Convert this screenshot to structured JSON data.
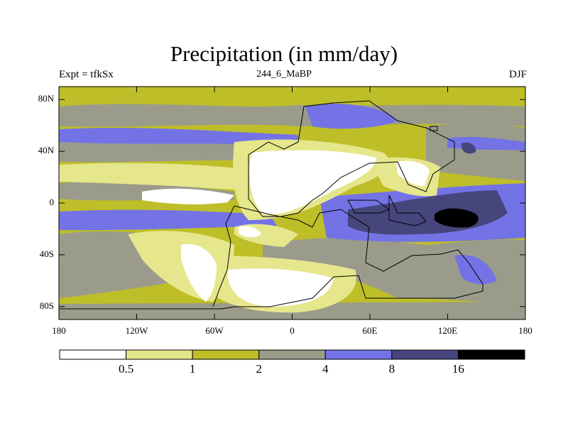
{
  "title": "Precipitation (in mm/day)",
  "left_string": "Expt = tfkSx",
  "center_string": "244_6_MaBP",
  "right_string": "DJF",
  "map": {
    "projection": "cylindrical-equidistant",
    "lon_range": [
      -180,
      180
    ],
    "lat_range": [
      -90,
      90
    ],
    "y_ticks": [
      {
        "label": "80N",
        "lat": 80
      },
      {
        "label": "40N",
        "lat": 40
      },
      {
        "label": "0",
        "lat": 0
      },
      {
        "label": "40S",
        "lat": -40
      },
      {
        "label": "80S",
        "lat": -80
      }
    ],
    "x_ticks": [
      {
        "label": "180",
        "lon": -180
      },
      {
        "label": "120W",
        "lon": -120
      },
      {
        "label": "60W",
        "lon": -60
      },
      {
        "label": "0",
        "lon": 0
      },
      {
        "label": "60E",
        "lon": 60
      },
      {
        "label": "120E",
        "lon": 120
      },
      {
        "label": "180",
        "lon": 180
      }
    ]
  },
  "colorbar": {
    "levels": [
      "0.5",
      "1",
      "2",
      "4",
      "8",
      "16"
    ],
    "colors": [
      "#ffffff",
      "#e6e68c",
      "#bebe28",
      "#9b9b8c",
      "#7373e6",
      "#46467d",
      "#000000"
    ]
  }
}
